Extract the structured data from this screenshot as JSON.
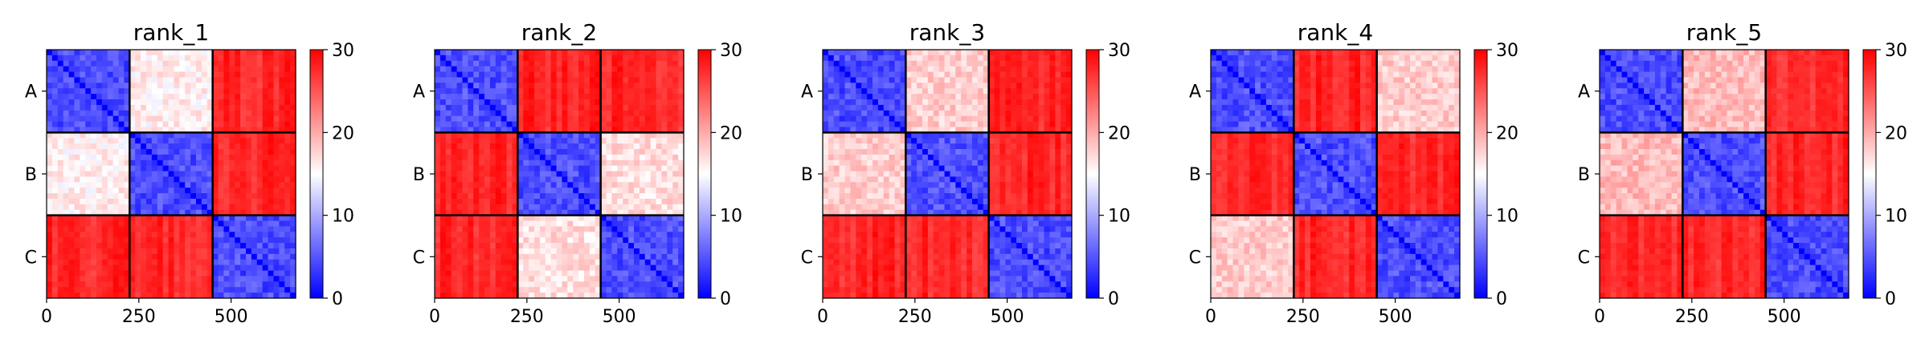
{
  "chart_data": [
    {
      "type": "heatmap",
      "title": "rank_1",
      "block_labels": [
        "A",
        "B",
        "C"
      ],
      "x_ticks": [
        0,
        250,
        500
      ],
      "xlim": [
        0,
        675
      ],
      "block_size": 225,
      "colorbar": {
        "ticks": [
          0,
          10,
          20,
          30
        ],
        "range": [
          0,
          30
        ],
        "colormap": "bwr"
      },
      "block_means": [
        [
          3,
          16,
          30
        ],
        [
          16,
          3,
          30
        ],
        [
          30,
          30,
          3
        ]
      ]
    },
    {
      "type": "heatmap",
      "title": "rank_2",
      "block_labels": [
        "A",
        "B",
        "C"
      ],
      "x_ticks": [
        0,
        250,
        500
      ],
      "xlim": [
        0,
        675
      ],
      "block_size": 225,
      "colorbar": {
        "ticks": [
          0,
          10,
          20,
          30
        ],
        "range": [
          0,
          30
        ],
        "colormap": "bwr"
      },
      "block_means": [
        [
          3,
          30,
          30
        ],
        [
          30,
          3,
          17
        ],
        [
          30,
          17,
          3
        ]
      ]
    },
    {
      "type": "heatmap",
      "title": "rank_3",
      "block_labels": [
        "A",
        "B",
        "C"
      ],
      "x_ticks": [
        0,
        250,
        500
      ],
      "xlim": [
        0,
        675
      ],
      "block_size": 225,
      "colorbar": {
        "ticks": [
          0,
          10,
          20,
          30
        ],
        "range": [
          0,
          30
        ],
        "colormap": "bwr"
      },
      "block_means": [
        [
          3,
          18,
          30
        ],
        [
          18,
          3,
          30
        ],
        [
          30,
          30,
          3
        ]
      ]
    },
    {
      "type": "heatmap",
      "title": "rank_4",
      "block_labels": [
        "A",
        "B",
        "C"
      ],
      "x_ticks": [
        0,
        250,
        500
      ],
      "xlim": [
        0,
        675
      ],
      "block_size": 225,
      "colorbar": {
        "ticks": [
          0,
          10,
          20,
          30
        ],
        "range": [
          0,
          30
        ],
        "colormap": "bwr"
      },
      "block_means": [
        [
          3,
          30,
          18
        ],
        [
          30,
          3,
          30
        ],
        [
          18,
          30,
          3
        ]
      ]
    },
    {
      "type": "heatmap",
      "title": "rank_5",
      "block_labels": [
        "A",
        "B",
        "C"
      ],
      "x_ticks": [
        0,
        250,
        500
      ],
      "xlim": [
        0,
        675
      ],
      "block_size": 225,
      "colorbar": {
        "ticks": [
          0,
          10,
          20,
          30
        ],
        "range": [
          0,
          30
        ],
        "colormap": "bwr"
      },
      "block_means": [
        [
          3,
          19,
          30
        ],
        [
          19,
          3,
          30
        ],
        [
          30,
          30,
          3
        ]
      ]
    }
  ]
}
